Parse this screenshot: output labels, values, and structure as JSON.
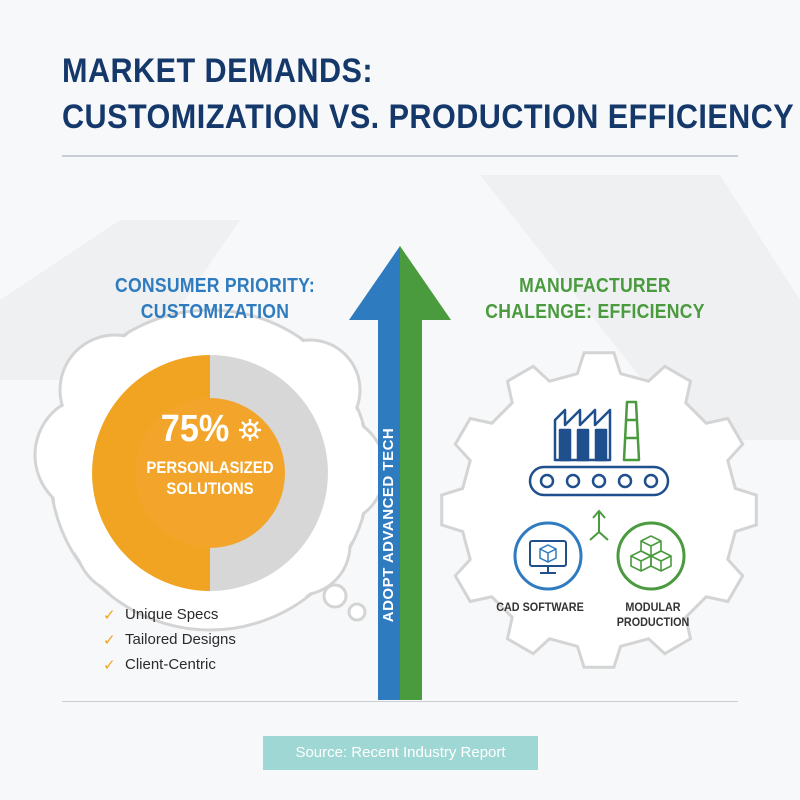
{
  "title": {
    "line1": "MARKET DEMANDS:",
    "line2": "CUSTOMIZATION VS. PRODUCTION EFFICIENCY"
  },
  "consumer": {
    "heading_line1": "CONSUMER PRIORITY:",
    "heading_line2": "CUSTOMIZATION",
    "percent": "75%",
    "percent_value": 75,
    "label_line1": "PERSONLASIZED",
    "label_line2": "SOLUTIONS",
    "benefits": [
      "Unique Specs",
      "Tailored Designs",
      "Client-Centric"
    ]
  },
  "manufacturer": {
    "heading_line1": "MANUFACTURER",
    "heading_line2": "CHALENGE: EFFICIENCY",
    "tool_1": "CAD SOFTWARE",
    "tool_2_line1": "MODULAR",
    "tool_2_line2": "PRODUCTION"
  },
  "arrow_label": "ADOPT ADVANCED TECH",
  "source": "Source: Recent Industry Report",
  "icons": {
    "check": "✓",
    "names": [
      "cloud-icon",
      "gear-cog-icon",
      "check-icon",
      "factory-icon",
      "conveyor-belt-icon",
      "cad-monitor-icon",
      "modular-cubes-icon",
      "gear-outline-icon",
      "up-arrow-icon"
    ]
  },
  "colors": {
    "title": "#15386b",
    "blue": "#2f7bc0",
    "green": "#4a9a3e",
    "orange": "#f0a422",
    "gray": "#d7d7d7",
    "teal": "#9fd7d4"
  }
}
